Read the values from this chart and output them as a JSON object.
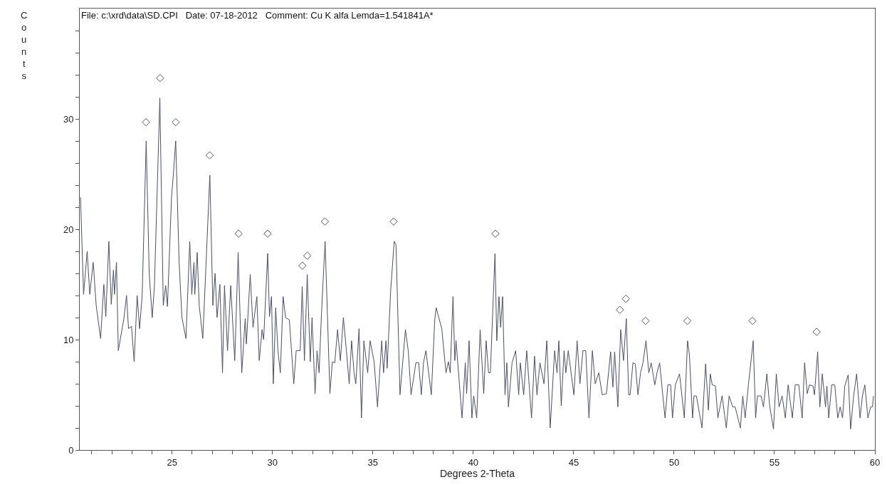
{
  "chart_data": {
    "type": "line",
    "title": "File: c:\\xrd\\data\\SD.CPI   Date: 07-18-2012   Comment: Cu K alfa Lemda=1.541841A*",
    "xlabel": "Degrees 2-Theta",
    "ylabel": "Counts",
    "xlim": [
      20.4,
      60
    ],
    "ylim": [
      0,
      40
    ],
    "xticks": [
      {
        "value": 21,
        "label": null
      },
      {
        "value": 22,
        "label": null
      },
      {
        "value": 23,
        "label": null
      },
      {
        "value": 24,
        "label": null
      },
      25,
      {
        "value": 26,
        "label": null
      },
      {
        "value": 27,
        "label": null
      },
      {
        "value": 28,
        "label": null
      },
      {
        "value": 29,
        "label": null
      },
      30,
      {
        "value": 31,
        "label": null
      },
      {
        "value": 32,
        "label": null
      },
      {
        "value": 33,
        "label": null
      },
      {
        "value": 34,
        "label": null
      },
      35,
      {
        "value": 36,
        "label": null
      },
      {
        "value": 37,
        "label": null
      },
      {
        "value": 38,
        "label": null
      },
      {
        "value": 39,
        "label": null
      },
      40,
      {
        "value": 41,
        "label": null
      },
      {
        "value": 42,
        "label": null
      },
      {
        "value": 43,
        "label": null
      },
      {
        "value": 44,
        "label": null
      },
      45,
      {
        "value": 46,
        "label": null
      },
      {
        "value": 47,
        "label": null
      },
      {
        "value": 48,
        "label": null
      },
      {
        "value": 49,
        "label": null
      },
      50,
      {
        "value": 51,
        "label": null
      },
      {
        "value": 52,
        "label": null
      },
      {
        "value": 53,
        "label": null
      },
      {
        "value": 54,
        "label": null
      },
      55,
      {
        "value": 56,
        "label": null
      },
      {
        "value": 57,
        "label": null
      },
      {
        "value": 58,
        "label": null
      },
      {
        "value": 59,
        "label": null
      },
      60
    ],
    "yticks": [
      0,
      {
        "value": 2,
        "label": null
      },
      {
        "value": 4,
        "label": null
      },
      {
        "value": 6,
        "label": null
      },
      {
        "value": 8,
        "label": null
      },
      10,
      {
        "value": 12,
        "label": null
      },
      {
        "value": 14,
        "label": null
      },
      {
        "value": 16,
        "label": null
      },
      {
        "value": 18,
        "label": null
      },
      20,
      {
        "value": 22,
        "label": null
      },
      {
        "value": 24,
        "label": null
      },
      {
        "value": 26,
        "label": null
      },
      {
        "value": 28,
        "label": null
      },
      30,
      {
        "value": 32,
        "label": null
      },
      {
        "value": 34,
        "label": null
      },
      {
        "value": 36,
        "label": null
      },
      {
        "value": 38,
        "label": null
      }
    ],
    "series": [
      {
        "color": "#4a4f66",
        "marker": "none",
        "line_style": "solid",
        "x": [
          20.44,
          20.59,
          20.77,
          20.9,
          21.07,
          21.22,
          21.44,
          21.6,
          21.7,
          21.85,
          21.97,
          22.08,
          22.13,
          22.23,
          22.32,
          22.6,
          22.73,
          22.83,
          22.98,
          23.11,
          23.26,
          23.38,
          23.51,
          23.71,
          23.86,
          24.01,
          24.12,
          24.39,
          24.56,
          24.68,
          24.77,
          24.97,
          25.06,
          25.18,
          25.35,
          25.49,
          25.69,
          25.88,
          25.98,
          26.09,
          26.13,
          26.25,
          26.35,
          26.53,
          26.88,
          27.03,
          27.14,
          27.24,
          27.38,
          27.51,
          27.61,
          27.76,
          27.92,
          28.12,
          28.29,
          28.47,
          28.64,
          28.7,
          28.89,
          29.03,
          29.22,
          29.34,
          29.48,
          29.56,
          29.76,
          29.85,
          29.95,
          30.04,
          30.16,
          30.27,
          30.39,
          30.53,
          30.65,
          30.84,
          31.06,
          31.18,
          31.38,
          31.48,
          31.59,
          31.73,
          31.88,
          31.97,
          32.12,
          32.22,
          32.32,
          32.44,
          32.62,
          32.86,
          32.98,
          33.1,
          33.24,
          33.38,
          33.53,
          33.68,
          33.82,
          33.94,
          34.06,
          34.15,
          34.31,
          34.43,
          34.55,
          34.74,
          34.86,
          35.06,
          35.23,
          35.44,
          35.53,
          35.65,
          35.71,
          35.88,
          36.06,
          36.15,
          36.35,
          36.62,
          36.76,
          36.9,
          37.14,
          37.28,
          37.41,
          37.52,
          37.64,
          37.91,
          38.08,
          38.15,
          38.43,
          38.64,
          38.76,
          38.85,
          38.99,
          39.08,
          39.14,
          39.44,
          39.6,
          39.67,
          39.79,
          39.93,
          40.02,
          40.17,
          40.34,
          40.52,
          40.64,
          40.76,
          40.85,
          41.08,
          41.17,
          41.28,
          41.36,
          41.46,
          41.58,
          41.67,
          41.75,
          41.93,
          42.11,
          42.26,
          42.34,
          42.51,
          42.66,
          42.9,
          43.05,
          43.17,
          43.32,
          43.52,
          43.66,
          43.83,
          44.05,
          44.17,
          44.26,
          44.38,
          44.52,
          44.61,
          44.73,
          45.01,
          45.17,
          45.31,
          45.46,
          45.6,
          45.76,
          45.93,
          46.07,
          46.25,
          46.42,
          46.63,
          46.84,
          46.95,
          47.04,
          47.2,
          47.34,
          47.48,
          47.62,
          47.74,
          47.81,
          47.95,
          48.07,
          48.2,
          48.33,
          48.45,
          48.6,
          48.74,
          48.86,
          49.04,
          49.15,
          49.28,
          49.43,
          49.55,
          49.69,
          49.83,
          49.92,
          50.06,
          50.27,
          50.51,
          50.67,
          50.76,
          50.92,
          50.99,
          51.11,
          51.39,
          51.57,
          51.71,
          51.8,
          51.9,
          52.06,
          52.18,
          52.39,
          52.6,
          52.74,
          52.92,
          53.04,
          53.3,
          53.42,
          53.54,
          53.7,
          53.94,
          54.06,
          54.15,
          54.33,
          54.45,
          54.62,
          54.76,
          54.95,
          55.09,
          55.23,
          55.38,
          55.54,
          55.68,
          55.89,
          56.03,
          56.21,
          56.38,
          56.5,
          56.63,
          56.74,
          56.92,
          56.99,
          57.15,
          57.26,
          57.38,
          57.54,
          57.61,
          57.7,
          57.85,
          58.0,
          58.15,
          58.27,
          58.39,
          58.5,
          58.67,
          58.79,
          58.94,
          59.09,
          59.26,
          59.38,
          59.5,
          59.65,
          59.79,
          59.88,
          59.93
        ],
        "values": [
          22.9,
          14.1,
          18.0,
          14.1,
          17.0,
          13.1,
          10.1,
          15.0,
          12.1,
          18.9,
          13.2,
          16.3,
          14.1,
          17.0,
          9.0,
          11.9,
          14.0,
          11.0,
          11.2,
          8.0,
          14.0,
          11.0,
          14.0,
          28.0,
          16.0,
          12.0,
          14.9,
          31.9,
          13.1,
          14.9,
          13.0,
          22.9,
          24.9,
          28.0,
          17.0,
          12.0,
          10.1,
          18.9,
          14.1,
          17.0,
          14.1,
          17.9,
          13.1,
          10.1,
          24.9,
          13.1,
          16.0,
          12.0,
          15.0,
          7.0,
          14.9,
          9.0,
          14.9,
          8.1,
          17.9,
          7.0,
          11.9,
          9.6,
          15.9,
          11.1,
          13.9,
          8.1,
          10.9,
          10.0,
          17.8,
          12.1,
          13.9,
          6.0,
          12.9,
          9.0,
          7.0,
          13.9,
          12.0,
          11.8,
          6.0,
          9.0,
          9.0,
          14.8,
          8.1,
          15.9,
          8.0,
          12.0,
          5.1,
          9.0,
          7.0,
          12.4,
          18.9,
          5.1,
          8.0,
          7.9,
          10.9,
          8.1,
          12.0,
          9.0,
          6.0,
          9.9,
          7.0,
          6.0,
          11.0,
          2.9,
          9.9,
          7.0,
          9.9,
          8.0,
          3.9,
          9.9,
          7.0,
          9.9,
          7.4,
          14.3,
          18.9,
          18.6,
          5.0,
          10.9,
          9.0,
          5.0,
          7.9,
          7.9,
          5.0,
          7.9,
          9.0,
          5.0,
          11.8,
          12.9,
          11.0,
          7.0,
          8.0,
          7.0,
          13.9,
          8.1,
          9.9,
          2.9,
          7.9,
          5.1,
          9.9,
          2.9,
          4.9,
          2.9,
          10.9,
          5.1,
          9.9,
          7.0,
          7.0,
          17.8,
          9.9,
          13.9,
          11.1,
          13.9,
          5.0,
          7.9,
          3.9,
          7.9,
          9.0,
          5.0,
          7.9,
          5.0,
          9.0,
          2.9,
          8.5,
          5.0,
          7.9,
          6.0,
          9.9,
          2.0,
          9.0,
          7.0,
          9.9,
          4.0,
          9.0,
          7.0,
          9.0,
          5.0,
          9.9,
          6.0,
          9.0,
          9.0,
          2.9,
          9.0,
          6.0,
          7.0,
          5.0,
          5.1,
          8.9,
          5.7,
          8.9,
          3.9,
          10.9,
          8.1,
          11.9,
          5.0,
          5.0,
          7.9,
          7.8,
          5.0,
          7.0,
          7.9,
          9.9,
          7.0,
          7.9,
          5.9,
          7.0,
          7.9,
          5.1,
          2.9,
          5.9,
          5.9,
          2.9,
          5.9,
          6.9,
          2.9,
          9.9,
          8.7,
          2.9,
          4.9,
          4.9,
          2.0,
          7.8,
          3.6,
          6.9,
          5.9,
          5.8,
          2.9,
          4.9,
          2.0,
          4.9,
          3.9,
          3.9,
          2.0,
          4.9,
          2.9,
          5.9,
          9.9,
          2.9,
          4.9,
          4.9,
          3.9,
          6.9,
          4.0,
          1.9,
          6.9,
          3.9,
          4.9,
          2.9,
          5.9,
          2.9,
          5.9,
          5.9,
          2.9,
          7.9,
          5.1,
          5.9,
          5.8,
          5.0,
          8.9,
          3.9,
          6.9,
          3.9,
          5.8,
          2.9,
          5.9,
          5.9,
          2.9,
          3.9,
          2.9,
          5.8,
          6.8,
          1.9,
          4.9,
          6.9,
          2.9,
          4.9,
          5.9,
          2.9,
          3.9,
          3.9,
          4.9
        ]
      },
      {
        "type": "scatter",
        "color": "#555555",
        "marker": "diamond",
        "x": [
          23.7,
          24.4,
          25.18,
          26.87,
          28.31,
          29.76,
          31.49,
          31.73,
          32.61,
          36.03,
          41.1,
          47.3,
          47.6,
          48.58,
          50.66,
          53.9,
          57.1
        ],
        "values": [
          29.7,
          33.7,
          29.7,
          26.7,
          19.6,
          19.6,
          16.7,
          17.6,
          20.7,
          20.7,
          19.6,
          12.7,
          13.7,
          11.7,
          11.7,
          11.7,
          10.7
        ]
      }
    ]
  }
}
